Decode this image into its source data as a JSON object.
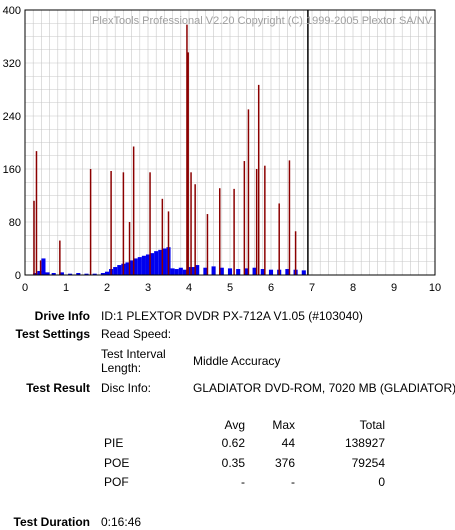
{
  "chart_data": {
    "type": "bar",
    "title": "PlexTools Professional V2.20 Copyright (C) 1999-2005 Plextor SA/NV",
    "xlim": [
      0,
      10
    ],
    "ylim": [
      0,
      400
    ],
    "x_ticks": [
      "0",
      "1",
      "2",
      "3",
      "4",
      "5",
      "6",
      "7",
      "8",
      "9",
      "10"
    ],
    "y_ticks": [
      "0",
      "80",
      "160",
      "240",
      "320",
      "400"
    ],
    "grid": true,
    "test_end_marker": 6.9,
    "colors": {
      "pie": "#0000ee",
      "poe": "#8b0000",
      "marker": "#000000",
      "grid": "#c8c8c8"
    },
    "series": [
      {
        "name": "PIE",
        "x": [
          0.25,
          0.35,
          0.45,
          0.55,
          0.7,
          0.9,
          1.1,
          1.3,
          1.5,
          1.7,
          1.9,
          2.0,
          2.1,
          2.2,
          2.3,
          2.4,
          2.5,
          2.6,
          2.7,
          2.8,
          2.9,
          3.0,
          3.1,
          3.2,
          3.3,
          3.4,
          3.5,
          3.6,
          3.7,
          3.8,
          3.9,
          4.0,
          4.1,
          4.2,
          4.4,
          4.6,
          4.8,
          5.0,
          5.2,
          5.4,
          5.6,
          5.8,
          6.0,
          6.2,
          6.4,
          6.6,
          6.8
        ],
        "y": [
          3,
          6,
          25,
          4,
          3,
          4,
          2,
          3,
          2,
          2,
          3,
          5,
          9,
          12,
          15,
          17,
          19,
          22,
          25,
          27,
          29,
          31,
          33,
          36,
          38,
          40,
          42,
          10,
          9,
          11,
          8,
          12,
          12,
          15,
          11,
          13,
          11,
          10,
          9,
          10,
          11,
          9,
          8,
          8,
          9,
          8,
          7
        ]
      },
      {
        "name": "POE",
        "x": [
          0.22,
          0.28,
          0.38,
          0.85,
          1.6,
          2.1,
          2.4,
          2.55,
          2.65,
          3.05,
          3.35,
          3.5,
          3.95,
          3.98,
          4.05,
          4.15,
          4.45,
          4.75,
          5.1,
          5.35,
          5.45,
          5.65,
          5.7,
          5.85,
          6.2,
          6.45,
          6.6
        ],
        "y": [
          112,
          187,
          22,
          52,
          160,
          157,
          155,
          80,
          194,
          155,
          115,
          96,
          378,
          336,
          155,
          137,
          92,
          131,
          130,
          172,
          250,
          160,
          287,
          165,
          108,
          173,
          66
        ]
      }
    ]
  },
  "drive_info": {
    "label": "Drive Info",
    "value": "ID:1 PLEXTOR DVDR PX-712A V1.05 (#103040)"
  },
  "test_settings": {
    "label": "Test Settings",
    "read_speed_label": "Read Speed:",
    "interval_label_1": "Test Interval",
    "interval_label_2": "Length:",
    "interval_value": "Middle Accuracy"
  },
  "test_result": {
    "label": "Test Result",
    "disc_label": "Disc Info:",
    "disc_value": "GLADIATOR DVD-ROM, 7020 MB (GLADIATOR)"
  },
  "stats": {
    "headers": {
      "avg": "Avg",
      "max": "Max",
      "total": "Total"
    },
    "rows": [
      {
        "name": "PIE",
        "avg": "0.62",
        "max": "44",
        "total": "138927"
      },
      {
        "name": "POE",
        "avg": "0.35",
        "max": "376",
        "total": "79254"
      },
      {
        "name": "POF",
        "avg": "-",
        "max": "-",
        "total": "0"
      }
    ]
  },
  "test_duration": {
    "label": "Test Duration",
    "value": "0:16:46"
  }
}
